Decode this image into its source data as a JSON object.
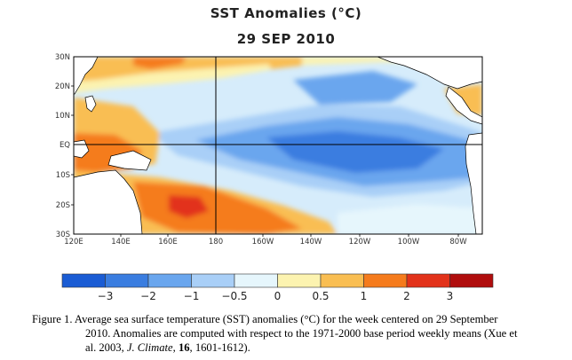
{
  "title": "SST Anomalies (°C)",
  "date": "29 SEP 2010",
  "lat_labels": [
    "30N",
    "20N",
    "10N",
    "EQ",
    "10S",
    "20S",
    "30S"
  ],
  "lon_labels": [
    "120E",
    "140E",
    "160E",
    "180",
    "160W",
    "140W",
    "120W",
    "100W",
    "80W"
  ],
  "colorbar": {
    "ticks": [
      "−3",
      "−2",
      "−1",
      "−0.5",
      "0",
      "0.5",
      "1",
      "2",
      "3"
    ],
    "colors": [
      "#1a5cd4",
      "#3a7de0",
      "#6aa6ee",
      "#a9cff7",
      "#e6f6fc",
      "#fcf3b0",
      "#f9be52",
      "#f57b1c",
      "#e2321a",
      "#b00d0d"
    ]
  },
  "caption": {
    "line1": "Figure 1. Average sea surface temperature (SST) anomalies (°C) for the week centered on 29 September",
    "line2": "2010.   Anomalies are computed with respect to the 1971-2000  base period weekly means (Xue et",
    "line3_pre": "al. 2003, ",
    "journal": "J. Climate",
    "line3_mid": ", ",
    "volume": "16",
    "line3_post": ", 1601-1612)."
  }
}
